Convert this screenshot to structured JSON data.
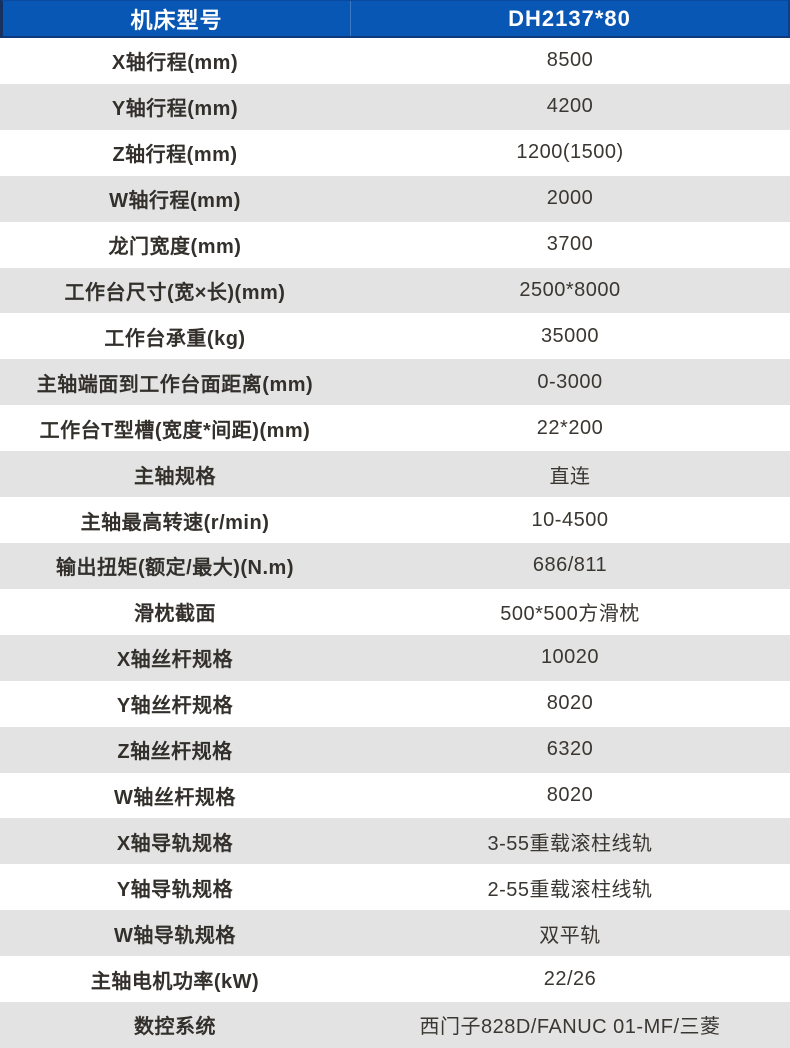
{
  "colors": {
    "header_bg": "#0857b4",
    "header_edge": "#16315f",
    "header_text": "#ffffff",
    "row_bg": "#ffffff",
    "row_alt_bg": "#e3e3e3",
    "label_text": "#33302c",
    "value_text": "#3a3631"
  },
  "table": {
    "header": {
      "model_label": "机床型号",
      "model_value": "DH2137*80"
    },
    "rows": [
      {
        "label": "X轴行程(mm)",
        "value": "8500"
      },
      {
        "label": "Y轴行程(mm)",
        "value": "4200"
      },
      {
        "label": "Z轴行程(mm)",
        "value": "1200(1500)"
      },
      {
        "label": "W轴行程(mm)",
        "value": "2000"
      },
      {
        "label": "龙门宽度(mm)",
        "value": "3700"
      },
      {
        "label": "工作台尺寸(宽×长)(mm)",
        "value": "2500*8000"
      },
      {
        "label": "工作台承重(kg)",
        "value": "35000"
      },
      {
        "label": "主轴端面到工作台面距离(mm)",
        "value": "0-3000"
      },
      {
        "label": "工作台T型槽(宽度*间距)(mm)",
        "value": "22*200"
      },
      {
        "label": "主轴规格",
        "value": "直连"
      },
      {
        "label": "主轴最高转速(r/min)",
        "value": "10-4500"
      },
      {
        "label": "输出扭矩(额定/最大)(N.m)",
        "value": "686/811"
      },
      {
        "label": "滑枕截面",
        "value": "500*500方滑枕"
      },
      {
        "label": "X轴丝杆规格",
        "value": "10020"
      },
      {
        "label": "Y轴丝杆规格",
        "value": "8020"
      },
      {
        "label": "Z轴丝杆规格",
        "value": "6320"
      },
      {
        "label": "W轴丝杆规格",
        "value": "8020"
      },
      {
        "label": "X轴导轨规格",
        "value": "3-55重载滚柱线轨"
      },
      {
        "label": "Y轴导轨规格",
        "value": "2-55重载滚柱线轨"
      },
      {
        "label": "W轴导轨规格",
        "value": "双平轨"
      },
      {
        "label": "主轴电机功率(kW)",
        "value": "22/26"
      },
      {
        "label": "数控系统",
        "value": "西门子828D/FANUC 01-MF/三菱"
      }
    ]
  }
}
